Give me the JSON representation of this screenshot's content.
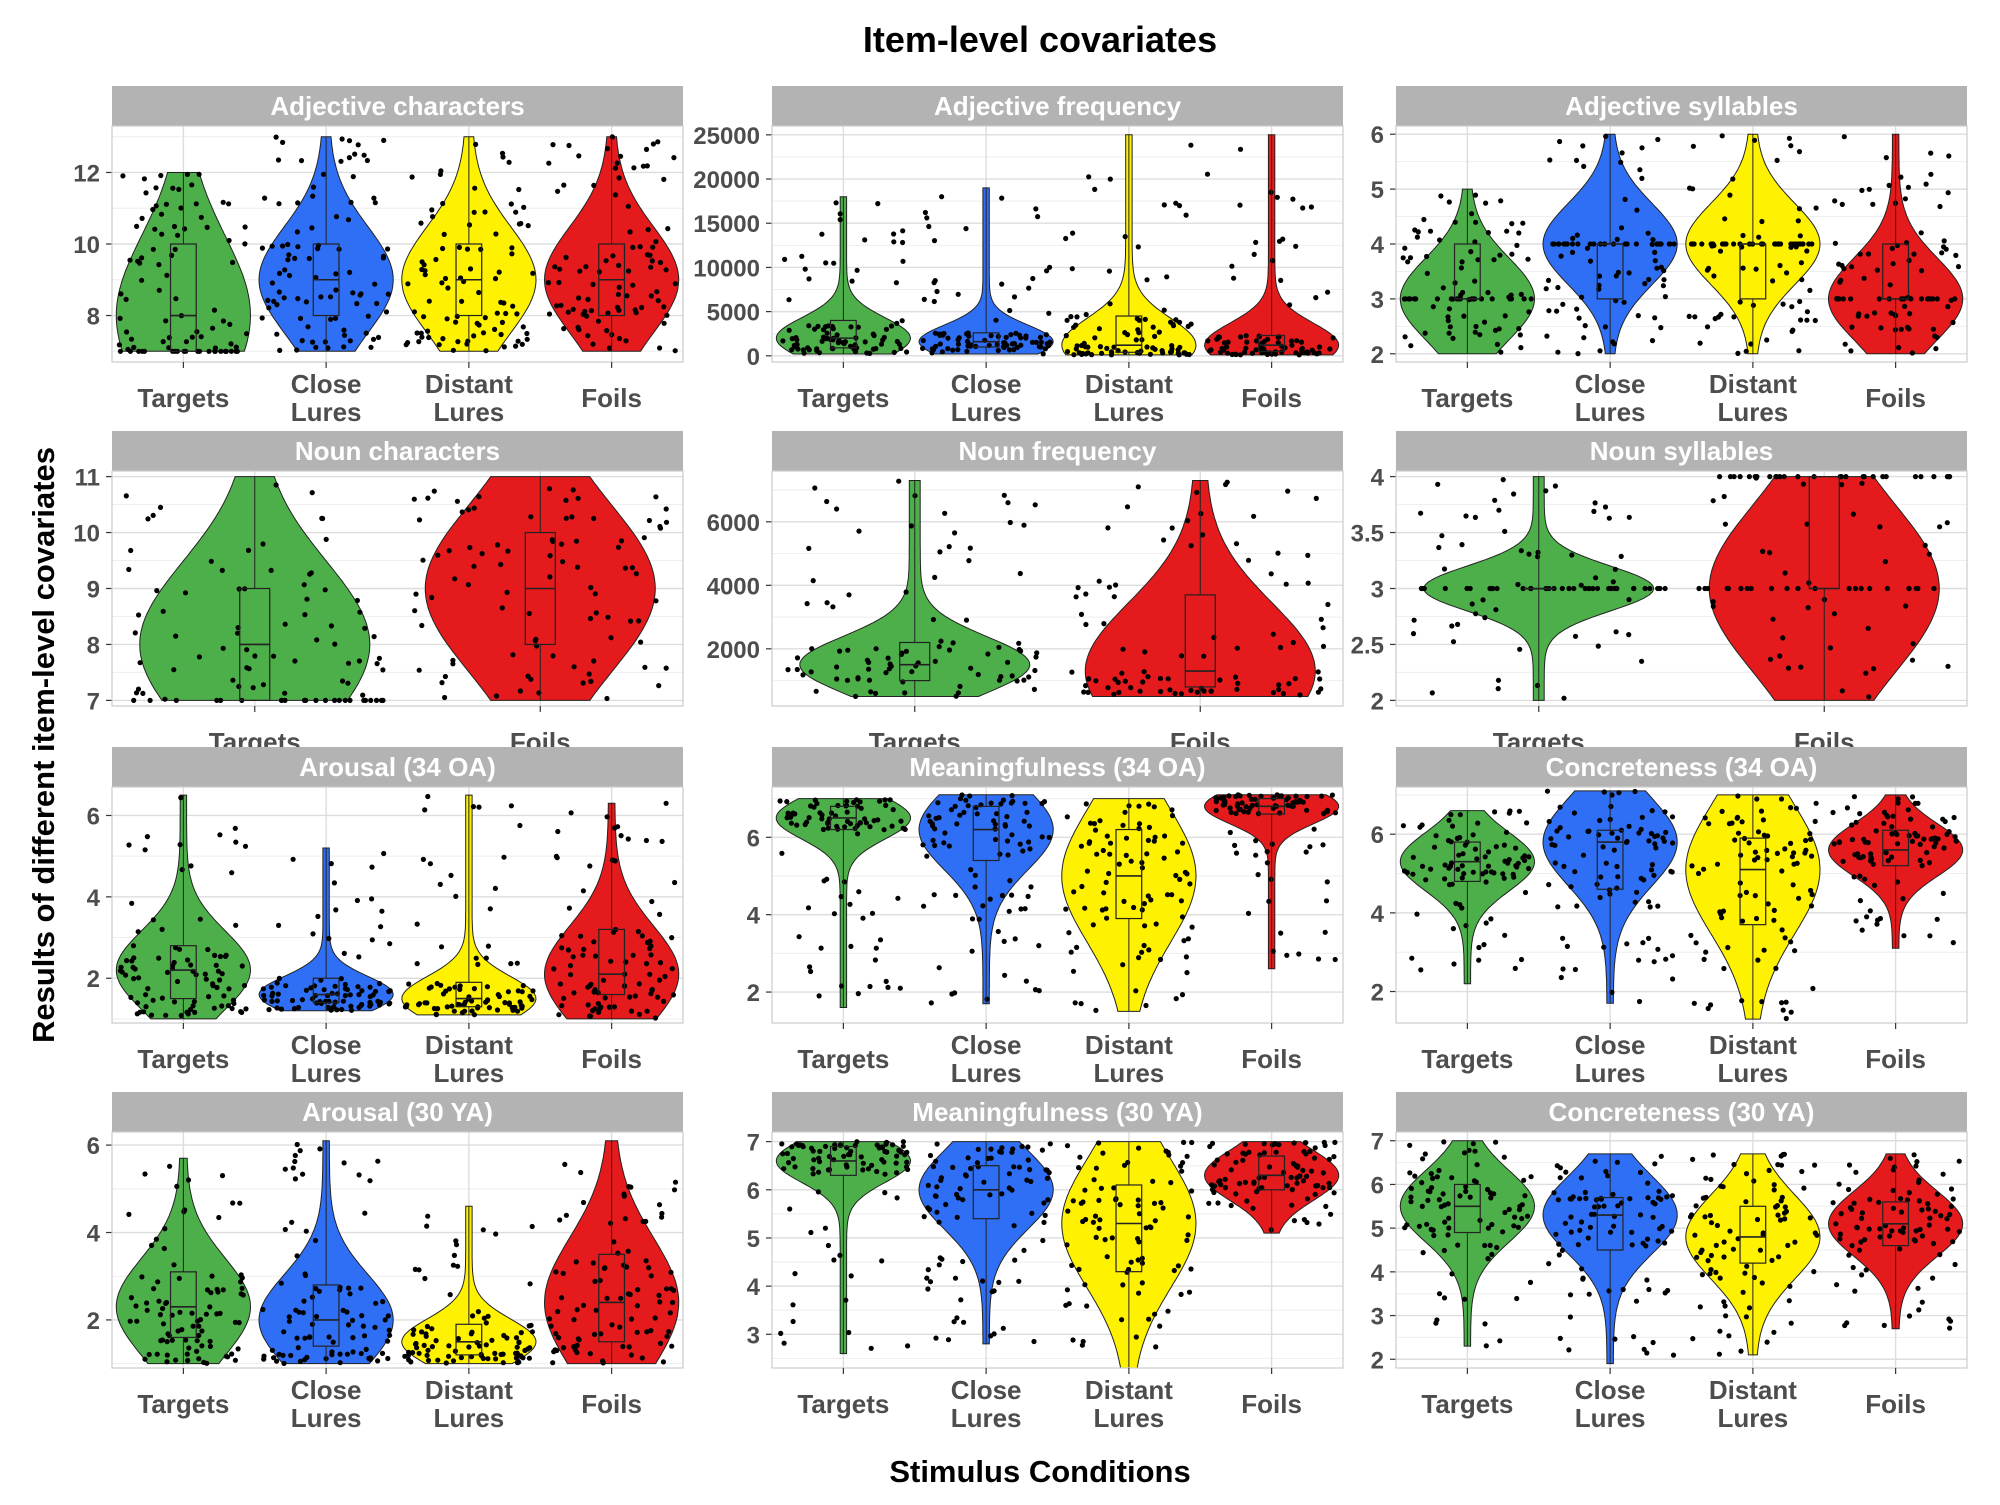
{
  "figure": {
    "title": "Item-level covariates",
    "xlabel": "Stimulus Conditions",
    "ylabel": "Results of different item-level covariates",
    "colors": {
      "Targets": "#4DAF4A",
      "Close Lures": "#2F6FF5",
      "Distant Lures": "#FFF200",
      "Foils": "#E41A1C",
      "strip": "#B3B3B3",
      "grid": "#E0E0E0"
    }
  },
  "chart_data": [
    {
      "type": "violin",
      "title": "Adjective characters",
      "categories": [
        "Targets",
        "Close\nLures",
        "Distant\nLures",
        "Foils"
      ],
      "ylim": [
        6.7,
        13.3
      ],
      "yticks": [
        8,
        10,
        12
      ],
      "series": [
        {
          "name": "Targets",
          "min": 7,
          "q1": 7,
          "median": 8,
          "q3": 10,
          "max": 12
        },
        {
          "name": "Close Lures",
          "min": 7,
          "q1": 8,
          "median": 9,
          "q3": 10,
          "max": 13
        },
        {
          "name": "Distant Lures",
          "min": 7,
          "q1": 8,
          "median": 9,
          "q3": 10,
          "max": 13
        },
        {
          "name": "Foils",
          "min": 7,
          "q1": 8,
          "median": 9,
          "q3": 10,
          "max": 13
        }
      ]
    },
    {
      "type": "violin",
      "title": "Adjective frequency",
      "categories": [
        "Targets",
        "Close\nLures",
        "Distant\nLures",
        "Foils"
      ],
      "ylim": [
        -700,
        26000
      ],
      "yticks": [
        0,
        5000,
        10000,
        15000,
        20000,
        25000
      ],
      "series": [
        {
          "name": "Targets",
          "min": 200,
          "q1": 900,
          "median": 2000,
          "q3": 4000,
          "max": 18000
        },
        {
          "name": "Close Lures",
          "min": 200,
          "q1": 1000,
          "median": 1600,
          "q3": 2600,
          "max": 19000
        },
        {
          "name": "Distant Lures",
          "min": 100,
          "q1": 400,
          "median": 1200,
          "q3": 4500,
          "max": 25000
        },
        {
          "name": "Foils",
          "min": 100,
          "q1": 500,
          "median": 1200,
          "q3": 2300,
          "max": 25000
        }
      ]
    },
    {
      "type": "violin",
      "title": "Adjective syllables",
      "categories": [
        "Targets",
        "Close\nLures",
        "Distant\nLures",
        "Foils"
      ],
      "ylim": [
        1.85,
        6.15
      ],
      "yticks": [
        2,
        3,
        4,
        5,
        6
      ],
      "series": [
        {
          "name": "Targets",
          "min": 2,
          "q1": 3,
          "median": 3,
          "q3": 4,
          "max": 5
        },
        {
          "name": "Close Lures",
          "min": 2,
          "q1": 3,
          "median": 4,
          "q3": 4,
          "max": 6
        },
        {
          "name": "Distant Lures",
          "min": 2,
          "q1": 3,
          "median": 4,
          "q3": 4,
          "max": 6
        },
        {
          "name": "Foils",
          "min": 2,
          "q1": 3,
          "median": 3,
          "q3": 4,
          "max": 6
        }
      ]
    },
    {
      "type": "violin",
      "title": "Noun characters",
      "categories": [
        "Targets",
        "Foils"
      ],
      "ylim": [
        6.9,
        11.1
      ],
      "yticks": [
        7,
        8,
        9,
        10,
        11
      ],
      "series": [
        {
          "name": "Targets",
          "min": 7,
          "q1": 7,
          "median": 8,
          "q3": 9,
          "max": 11
        },
        {
          "name": "Foils",
          "min": 7,
          "q1": 8,
          "median": 9,
          "q3": 10,
          "max": 11
        }
      ]
    },
    {
      "type": "violin",
      "title": "Noun frequency",
      "categories": [
        "Targets",
        "Foils"
      ],
      "ylim": [
        200,
        7600
      ],
      "yticks": [
        2000,
        4000,
        6000
      ],
      "series": [
        {
          "name": "Targets",
          "min": 500,
          "q1": 1000,
          "median": 1500,
          "q3": 2200,
          "max": 7300
        },
        {
          "name": "Foils",
          "min": 500,
          "q1": 800,
          "median": 1300,
          "q3": 3700,
          "max": 7300
        }
      ]
    },
    {
      "type": "violin",
      "title": "Noun syllables",
      "categories": [
        "Targets",
        "Foils"
      ],
      "ylim": [
        1.95,
        4.05
      ],
      "yticks": [
        2.0,
        2.5,
        3.0,
        3.5,
        4.0
      ],
      "series": [
        {
          "name": "Targets",
          "min": 2,
          "q1": 3,
          "median": 3,
          "q3": 3,
          "max": 4
        },
        {
          "name": "Foils",
          "min": 2,
          "q1": 3,
          "median": 3,
          "q3": 4,
          "max": 4
        }
      ]
    },
    {
      "type": "violin",
      "title": "Arousal (34 OA)",
      "categories": [
        "Targets",
        "Close\nLures",
        "Distant\nLures",
        "Foils"
      ],
      "ylim": [
        0.9,
        6.7
      ],
      "yticks": [
        2,
        4,
        6
      ],
      "series": [
        {
          "name": "Targets",
          "min": 1.0,
          "q1": 1.5,
          "median": 2.2,
          "q3": 2.8,
          "max": 6.5
        },
        {
          "name": "Close Lures",
          "min": 1.2,
          "q1": 1.4,
          "median": 1.6,
          "q3": 2.0,
          "max": 5.2
        },
        {
          "name": "Distant Lures",
          "min": 1.1,
          "q1": 1.3,
          "median": 1.5,
          "q3": 1.9,
          "max": 6.5
        },
        {
          "name": "Foils",
          "min": 1.0,
          "q1": 1.6,
          "median": 2.1,
          "q3": 3.2,
          "max": 6.3
        }
      ]
    },
    {
      "type": "violin",
      "title": "Meaningfulness (34 OA)",
      "categories": [
        "Targets",
        "Close\nLures",
        "Distant\nLures",
        "Foils"
      ],
      "ylim": [
        1.2,
        7.3
      ],
      "yticks": [
        2,
        4,
        6
      ],
      "series": [
        {
          "name": "Targets",
          "min": 1.6,
          "q1": 6.2,
          "median": 6.5,
          "q3": 6.8,
          "max": 7.0
        },
        {
          "name": "Close Lures",
          "min": 1.7,
          "q1": 5.4,
          "median": 6.2,
          "q3": 6.8,
          "max": 7.1
        },
        {
          "name": "Distant Lures",
          "min": 1.5,
          "q1": 3.9,
          "median": 5.0,
          "q3": 6.2,
          "max": 7.0
        },
        {
          "name": "Foils",
          "min": 2.6,
          "q1": 6.6,
          "median": 6.8,
          "q3": 7.0,
          "max": 7.1
        }
      ]
    },
    {
      "type": "violin",
      "title": "Concreteness (34 OA)",
      "categories": [
        "Targets",
        "Close\nLures",
        "Distant\nLures",
        "Foils"
      ],
      "ylim": [
        1.2,
        7.2
      ],
      "yticks": [
        2,
        4,
        6
      ],
      "series": [
        {
          "name": "Targets",
          "min": 2.2,
          "q1": 4.8,
          "median": 5.3,
          "q3": 5.8,
          "max": 6.6
        },
        {
          "name": "Close Lures",
          "min": 1.7,
          "q1": 4.6,
          "median": 5.8,
          "q3": 6.1,
          "max": 7.1
        },
        {
          "name": "Distant Lures",
          "min": 1.3,
          "q1": 3.7,
          "median": 5.1,
          "q3": 5.9,
          "max": 7.0
        },
        {
          "name": "Foils",
          "min": 3.1,
          "q1": 5.2,
          "median": 5.6,
          "q3": 6.1,
          "max": 7.0
        }
      ]
    },
    {
      "type": "violin",
      "title": "Arousal (30 YA)",
      "categories": [
        "Targets",
        "Close\nLures",
        "Distant\nLures",
        "Foils"
      ],
      "ylim": [
        0.9,
        6.3
      ],
      "yticks": [
        2,
        4,
        6
      ],
      "series": [
        {
          "name": "Targets",
          "min": 1.0,
          "q1": 1.6,
          "median": 2.3,
          "q3": 3.1,
          "max": 5.7
        },
        {
          "name": "Close Lures",
          "min": 1.0,
          "q1": 1.4,
          "median": 2.0,
          "q3": 2.8,
          "max": 6.1
        },
        {
          "name": "Distant Lures",
          "min": 1.0,
          "q1": 1.2,
          "median": 1.5,
          "q3": 1.9,
          "max": 4.6
        },
        {
          "name": "Foils",
          "min": 1.0,
          "q1": 1.5,
          "median": 2.4,
          "q3": 3.5,
          "max": 6.1
        }
      ]
    },
    {
      "type": "violin",
      "title": "Meaningfulness (30 YA)",
      "categories": [
        "Targets",
        "Close\nLures",
        "Distant\nLures",
        "Foils"
      ],
      "ylim": [
        2.3,
        7.2
      ],
      "yticks": [
        3,
        4,
        5,
        6,
        7
      ],
      "series": [
        {
          "name": "Targets",
          "min": 2.6,
          "q1": 6.3,
          "median": 6.6,
          "q3": 6.9,
          "max": 7.0
        },
        {
          "name": "Close Lures",
          "min": 2.8,
          "q1": 5.4,
          "median": 6.0,
          "q3": 6.5,
          "max": 7.0
        },
        {
          "name": "Distant Lures",
          "min": 2.3,
          "q1": 4.3,
          "median": 5.3,
          "q3": 6.1,
          "max": 7.0
        },
        {
          "name": "Foils",
          "min": 5.1,
          "q1": 6.0,
          "median": 6.3,
          "q3": 6.7,
          "max": 7.0
        }
      ]
    },
    {
      "type": "violin",
      "title": "Concreteness (30 YA)",
      "categories": [
        "Targets",
        "Close\nLures",
        "Distant\nLures",
        "Foils"
      ],
      "ylim": [
        1.8,
        7.2
      ],
      "yticks": [
        2,
        3,
        4,
        5,
        6,
        7
      ],
      "series": [
        {
          "name": "Targets",
          "min": 2.3,
          "q1": 4.9,
          "median": 5.5,
          "q3": 6.0,
          "max": 7.0
        },
        {
          "name": "Close Lures",
          "min": 1.9,
          "q1": 4.5,
          "median": 5.3,
          "q3": 5.7,
          "max": 6.7
        },
        {
          "name": "Distant Lures",
          "min": 2.1,
          "q1": 4.2,
          "median": 4.8,
          "q3": 5.5,
          "max": 6.7
        },
        {
          "name": "Foils",
          "min": 2.7,
          "q1": 4.6,
          "median": 5.1,
          "q3": 5.6,
          "max": 6.7
        }
      ]
    }
  ]
}
